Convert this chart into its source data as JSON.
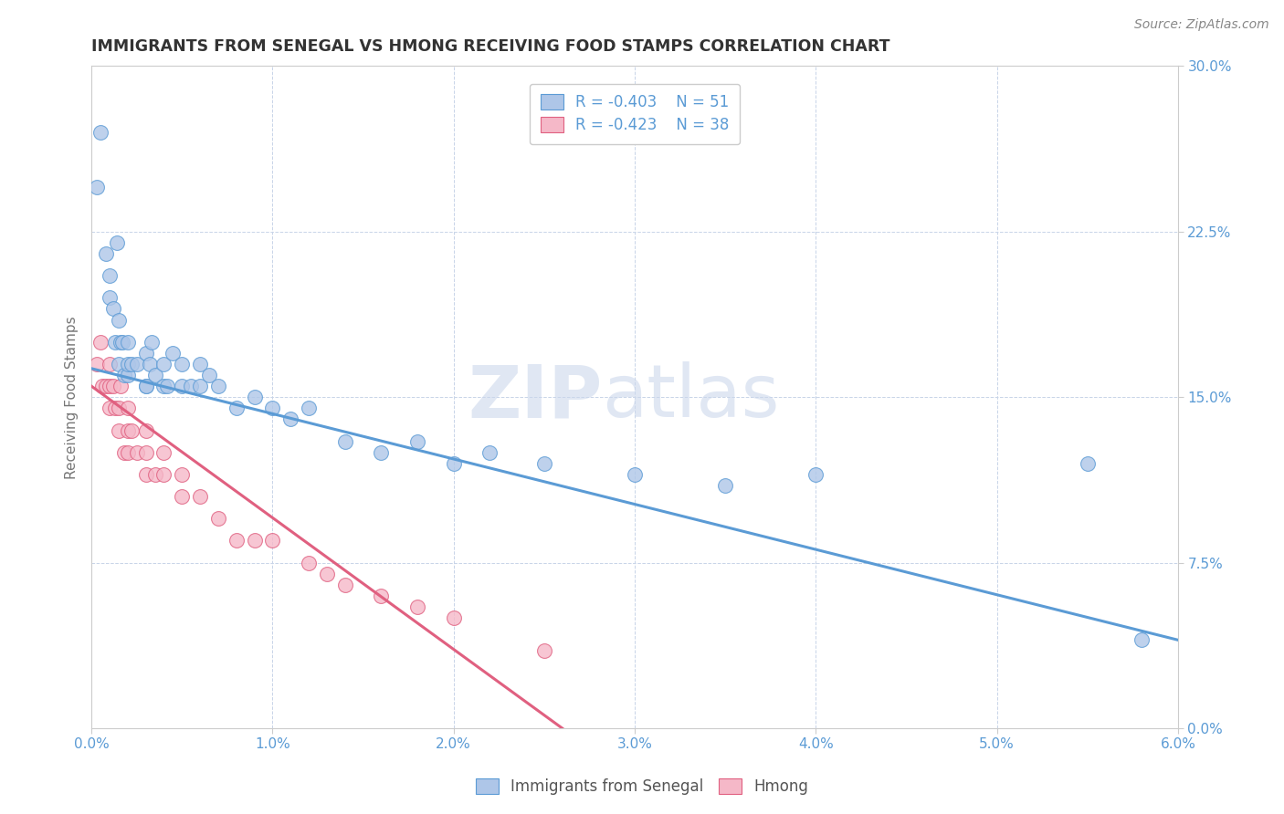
{
  "title": "IMMIGRANTS FROM SENEGAL VS HMONG RECEIVING FOOD STAMPS CORRELATION CHART",
  "source": "Source: ZipAtlas.com",
  "xlabel_senegal": "Immigrants from Senegal",
  "xlabel_hmong": "Hmong",
  "ylabel": "Receiving Food Stamps",
  "xlim": [
    0.0,
    0.06
  ],
  "ylim": [
    0.0,
    0.3
  ],
  "xticks": [
    0.0,
    0.01,
    0.02,
    0.03,
    0.04,
    0.05,
    0.06
  ],
  "xticklabels": [
    "0.0%",
    "1.0%",
    "2.0%",
    "3.0%",
    "4.0%",
    "5.0%",
    "6.0%"
  ],
  "yticks": [
    0.0,
    0.075,
    0.15,
    0.225,
    0.3
  ],
  "yticklabels": [
    "0.0%",
    "7.5%",
    "15.0%",
    "22.5%",
    "30.0%"
  ],
  "senegal_color": "#aec6e8",
  "hmong_color": "#f5b8c8",
  "senegal_line_color": "#5b9bd5",
  "hmong_line_color": "#e06080",
  "R_senegal": -0.403,
  "N_senegal": 51,
  "R_hmong": -0.423,
  "N_hmong": 38,
  "watermark_zip": "ZIP",
  "watermark_atlas": "atlas",
  "background_color": "#ffffff",
  "grid_color": "#c8d4e8",
  "axis_color": "#cccccc",
  "title_color": "#333333",
  "tick_color": "#5b9bd5",
  "senegal_x": [
    0.0003,
    0.0005,
    0.0008,
    0.001,
    0.001,
    0.0012,
    0.0013,
    0.0014,
    0.0015,
    0.0015,
    0.0016,
    0.0017,
    0.0018,
    0.002,
    0.002,
    0.002,
    0.0022,
    0.0025,
    0.003,
    0.003,
    0.003,
    0.0032,
    0.0033,
    0.0035,
    0.004,
    0.004,
    0.0042,
    0.0045,
    0.005,
    0.005,
    0.0055,
    0.006,
    0.006,
    0.0065,
    0.007,
    0.008,
    0.009,
    0.01,
    0.011,
    0.012,
    0.014,
    0.016,
    0.018,
    0.02,
    0.022,
    0.025,
    0.03,
    0.035,
    0.04,
    0.055,
    0.058
  ],
  "senegal_y": [
    0.245,
    0.27,
    0.215,
    0.195,
    0.205,
    0.19,
    0.175,
    0.22,
    0.165,
    0.185,
    0.175,
    0.175,
    0.16,
    0.16,
    0.165,
    0.175,
    0.165,
    0.165,
    0.155,
    0.17,
    0.155,
    0.165,
    0.175,
    0.16,
    0.155,
    0.165,
    0.155,
    0.17,
    0.155,
    0.165,
    0.155,
    0.155,
    0.165,
    0.16,
    0.155,
    0.145,
    0.15,
    0.145,
    0.14,
    0.145,
    0.13,
    0.125,
    0.13,
    0.12,
    0.125,
    0.12,
    0.115,
    0.11,
    0.115,
    0.12,
    0.04
  ],
  "hmong_x": [
    0.0003,
    0.0005,
    0.0006,
    0.0008,
    0.001,
    0.001,
    0.001,
    0.0012,
    0.0013,
    0.0015,
    0.0015,
    0.0016,
    0.0018,
    0.002,
    0.002,
    0.002,
    0.0022,
    0.0025,
    0.003,
    0.003,
    0.003,
    0.0035,
    0.004,
    0.004,
    0.005,
    0.005,
    0.006,
    0.007,
    0.008,
    0.009,
    0.01,
    0.012,
    0.013,
    0.014,
    0.016,
    0.018,
    0.02,
    0.025
  ],
  "hmong_y": [
    0.165,
    0.175,
    0.155,
    0.155,
    0.145,
    0.155,
    0.165,
    0.155,
    0.145,
    0.135,
    0.145,
    0.155,
    0.125,
    0.125,
    0.135,
    0.145,
    0.135,
    0.125,
    0.115,
    0.125,
    0.135,
    0.115,
    0.115,
    0.125,
    0.105,
    0.115,
    0.105,
    0.095,
    0.085,
    0.085,
    0.085,
    0.075,
    0.07,
    0.065,
    0.06,
    0.055,
    0.05,
    0.035
  ],
  "senegal_trendline_x": [
    0.0,
    0.06
  ],
  "senegal_trendline_y": [
    0.163,
    0.04
  ],
  "hmong_trendline_x": [
    0.0,
    0.026
  ],
  "hmong_trendline_y": [
    0.155,
    0.0
  ]
}
